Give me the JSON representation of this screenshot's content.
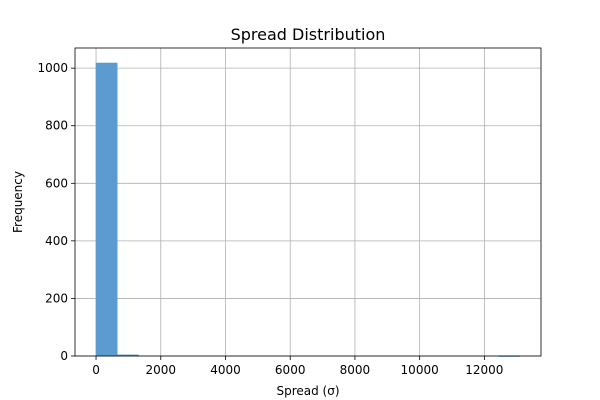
{
  "chart_data": {
    "type": "bar",
    "title": "Spread Distribution",
    "xlabel": "Spread (σ)",
    "ylabel": "Frequency",
    "xlim": [
      -650,
      13750
    ],
    "ylim": [
      0,
      1070
    ],
    "xticks": [
      0,
      2000,
      4000,
      6000,
      8000,
      10000,
      12000
    ],
    "yticks": [
      0,
      200,
      400,
      600,
      800,
      1000
    ],
    "grid": true,
    "bar_color": "#5b9bd0",
    "bins": [
      {
        "x0": 0,
        "x1": 655,
        "count": 1018
      },
      {
        "x0": 655,
        "x1": 1310,
        "count": 4
      },
      {
        "x0": 1310,
        "x1": 1965,
        "count": 0
      },
      {
        "x0": 1965,
        "x1": 2620,
        "count": 0
      },
      {
        "x0": 2620,
        "x1": 3275,
        "count": 0
      },
      {
        "x0": 3275,
        "x1": 3930,
        "count": 0
      },
      {
        "x0": 3930,
        "x1": 4585,
        "count": 0
      },
      {
        "x0": 4585,
        "x1": 5240,
        "count": 0
      },
      {
        "x0": 5240,
        "x1": 5895,
        "count": 0
      },
      {
        "x0": 5895,
        "x1": 6550,
        "count": 0
      },
      {
        "x0": 6550,
        "x1": 7205,
        "count": 0
      },
      {
        "x0": 7205,
        "x1": 7860,
        "count": 0
      },
      {
        "x0": 7860,
        "x1": 8515,
        "count": 0
      },
      {
        "x0": 8515,
        "x1": 9170,
        "count": 0
      },
      {
        "x0": 9170,
        "x1": 9825,
        "count": 0
      },
      {
        "x0": 9825,
        "x1": 10480,
        "count": 0
      },
      {
        "x0": 10480,
        "x1": 11135,
        "count": 0
      },
      {
        "x0": 11135,
        "x1": 11790,
        "count": 0
      },
      {
        "x0": 11790,
        "x1": 12445,
        "count": 0
      },
      {
        "x0": 12445,
        "x1": 13100,
        "count": 1
      }
    ]
  }
}
